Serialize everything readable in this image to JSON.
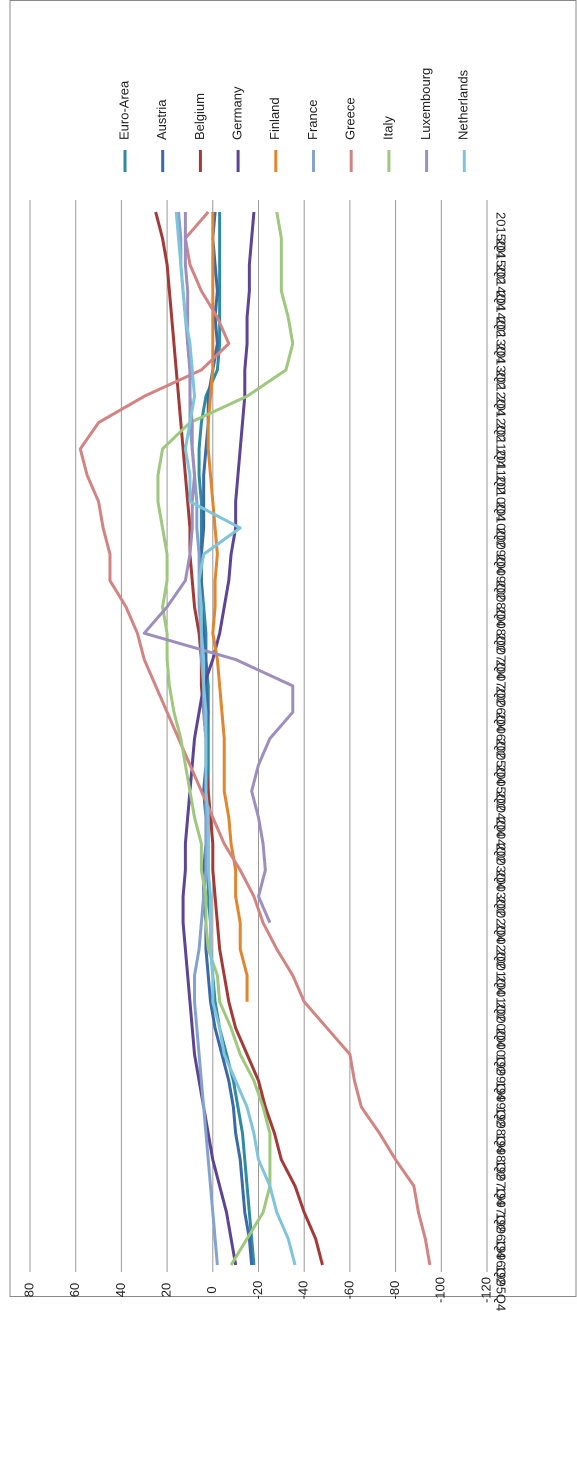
{
  "chart_data": {
    "type": "line",
    "orientation": "rotated",
    "categories": [
      "1995Q4",
      "1996Q2",
      "1996Q4",
      "1997Q2",
      "1997Q4",
      "1998Q2",
      "1998Q4",
      "1999Q2",
      "1999Q4",
      "2000Q2",
      "2000Q4",
      "2001Q2",
      "2001Q4",
      "2002Q2",
      "2002Q4",
      "2003Q2",
      "2003Q4",
      "2004Q2",
      "2004Q4",
      "2005Q2",
      "2005Q4",
      "2006Q2",
      "2006Q4",
      "2007Q2",
      "2007Q4",
      "2008Q2",
      "2008Q4",
      "2009Q2",
      "2009Q4",
      "2010Q2",
      "2010Q4",
      "2011Q2",
      "2011Q4",
      "2012Q2",
      "2012Q4",
      "2013Q2",
      "2013Q4",
      "2014Q2",
      "2014Q4",
      "2015Q2",
      "2015Q4"
    ],
    "ylim": [
      -120,
      80
    ],
    "yticks": [
      80,
      60,
      40,
      20,
      0,
      -20,
      -40,
      -60,
      -80,
      -100,
      -120
    ],
    "grid": true,
    "series": [
      {
        "name": "Euro-Area",
        "color": "#2e8ba0",
        "values": [
          -18,
          -17,
          -16,
          -15,
          -14,
          -13,
          -11,
          -9,
          -6,
          -3,
          -1,
          0,
          1,
          1,
          2,
          2,
          2,
          2,
          2,
          2,
          2,
          2,
          2,
          3,
          3,
          4,
          5,
          5,
          5,
          5,
          6,
          6,
          5,
          3,
          -2,
          -3,
          -3,
          -3,
          -3,
          -3,
          -3
        ]
      },
      {
        "name": "Austria",
        "color": "#3b6aa8",
        "values": [
          -17,
          -16,
          -14,
          -13,
          -12,
          -10,
          -9,
          -7,
          -4,
          -1,
          1,
          2,
          3,
          3,
          4,
          4,
          3,
          3,
          4,
          3,
          3,
          2,
          3,
          3,
          4,
          5,
          5,
          5,
          4,
          4,
          4,
          3,
          2,
          2,
          0,
          -2,
          -1,
          -2,
          -1,
          0,
          -1
        ]
      },
      {
        "name": "Belgium",
        "color": "#a33a37",
        "values": [
          -48,
          -45,
          -40,
          -36,
          -30,
          -27,
          -23,
          -20,
          -15,
          -10,
          -7,
          -5,
          -3,
          -2,
          -1,
          0,
          0,
          1,
          2,
          3,
          3,
          4,
          5,
          5,
          6,
          8,
          9,
          10,
          10,
          11,
          12,
          13,
          14,
          15,
          16,
          17,
          18,
          19,
          20,
          22,
          25
        ]
      },
      {
        "name": "Germany",
        "color": "#5c4594",
        "values": [
          -10,
          -8,
          -6,
          -3,
          0,
          2,
          4,
          6,
          8,
          9,
          10,
          11,
          12,
          13,
          13,
          12,
          12,
          11,
          10,
          9,
          8,
          6,
          4,
          0,
          -3,
          -5,
          -7,
          -8,
          -10,
          -10,
          -11,
          -12,
          -13,
          -14,
          -14,
          -15,
          -15,
          -16,
          -16,
          -17,
          -18
        ]
      },
      {
        "name": "Finland",
        "color": "#e0862f",
        "values": [
          null,
          null,
          null,
          null,
          null,
          null,
          null,
          null,
          null,
          null,
          -15,
          -15,
          -12,
          -12,
          -10,
          -10,
          -8,
          -7,
          -5,
          -5,
          -5,
          -4,
          -3,
          -2,
          0,
          -1,
          -1,
          -2,
          -1,
          0,
          1,
          2,
          2,
          1,
          0,
          0,
          0,
          0,
          0,
          0,
          0
        ]
      },
      {
        "name": "France",
        "color": "#85a2cf",
        "values": [
          -2,
          -1,
          0,
          1,
          2,
          3,
          4,
          5,
          6,
          7,
          8,
          8,
          6,
          5,
          4,
          3,
          3,
          3,
          3,
          3,
          3,
          4,
          4,
          5,
          5,
          6,
          6,
          6,
          7,
          7,
          8,
          9,
          10,
          10,
          10,
          11,
          12,
          13,
          14,
          14,
          15
        ]
      },
      {
        "name": "Greece",
        "color": "#d18481",
        "values": [
          -95,
          -93,
          -90,
          -88,
          -80,
          -73,
          -65,
          -62,
          -60,
          -50,
          -40,
          -35,
          -28,
          -22,
          -18,
          -12,
          -5,
          0,
          5,
          10,
          15,
          20,
          25,
          30,
          33,
          38,
          45,
          45,
          48,
          50,
          55,
          58,
          50,
          30,
          5,
          -7,
          -2,
          5,
          10,
          12,
          2
        ]
      },
      {
        "name": "Italy",
        "color": "#9fc77d",
        "values": [
          -8,
          -15,
          -22,
          -25,
          -25,
          -25,
          -22,
          -18,
          -12,
          -8,
          -3,
          -2,
          2,
          3,
          3,
          5,
          5,
          8,
          10,
          12,
          14,
          17,
          19,
          20,
          20,
          22,
          20,
          20,
          22,
          24,
          24,
          22,
          10,
          -15,
          -32,
          -35,
          -33,
          -30,
          -30,
          -30,
          -28
        ]
      },
      {
        "name": "Luxembourg",
        "color": "#9d8fbd",
        "values": [
          null,
          null,
          null,
          null,
          null,
          null,
          null,
          null,
          null,
          null,
          null,
          null,
          null,
          -25,
          -20,
          -23,
          -22,
          -20,
          -17,
          -20,
          -25,
          -35,
          -35,
          -10,
          30,
          20,
          12,
          10,
          9,
          9,
          8,
          9,
          9,
          10,
          10,
          11,
          11,
          11,
          12,
          12,
          12
        ]
      },
      {
        "name": "Netherlands",
        "color": "#7fc4da",
        "values": [
          -36,
          -33,
          -28,
          -25,
          -20,
          -18,
          -15,
          -10,
          -5,
          -3,
          0,
          0,
          1,
          1,
          1,
          2,
          2,
          2,
          3,
          3,
          3,
          3,
          4,
          4,
          5,
          5,
          6,
          4,
          -12,
          10,
          10,
          12,
          10,
          8,
          9,
          10,
          12,
          13,
          14,
          15,
          16
        ]
      }
    ]
  }
}
